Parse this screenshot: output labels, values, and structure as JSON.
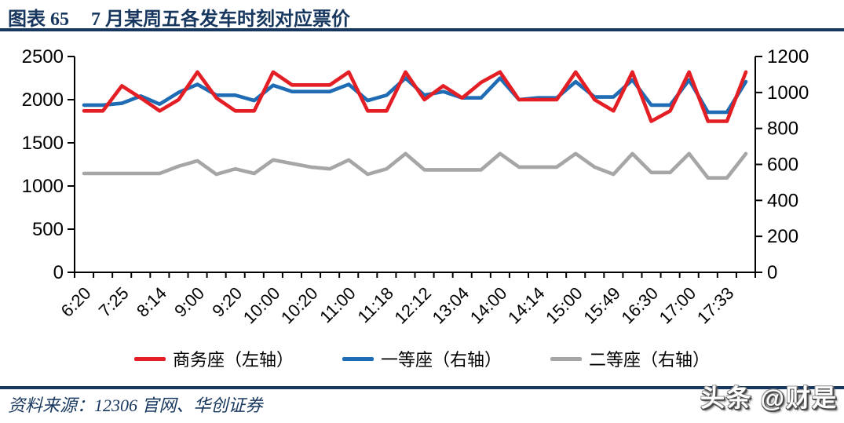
{
  "header": {
    "figure_label": "图表 65",
    "title": "7 月某周五各发车时刻对应票价"
  },
  "footer": {
    "source": "资料来源：12306 官网、华创证券"
  },
  "watermark": {
    "text": "头条 @财是"
  },
  "colors": {
    "navy": "#17375e",
    "axis": "#000000",
    "watermark_text": "#ffffff"
  },
  "chart_data": {
    "type": "line",
    "title": "7 月某周五各发车时刻对应票价",
    "xlabel": "",
    "ylabel_left": "",
    "ylabel_right": "",
    "grid": false,
    "legend_position": "bottom",
    "left_axis": {
      "range": [
        0,
        2500
      ],
      "ticks": [
        0,
        500,
        1000,
        1500,
        2000,
        2500
      ]
    },
    "right_axis": {
      "range": [
        0,
        1200
      ],
      "ticks": [
        0,
        200,
        400,
        600,
        800,
        1000,
        1200
      ]
    },
    "categories": [
      "6:20",
      "",
      "7:25",
      "",
      "8:14",
      "",
      "9:00",
      "",
      "9:20",
      "",
      "10:00",
      "",
      "10:20",
      "",
      "11:00",
      "",
      "11:18",
      "",
      "12:12",
      "",
      "13:04",
      "",
      "14:00",
      "",
      "14:14",
      "",
      "15:00",
      "",
      "15:49",
      "",
      "16:30",
      "",
      "17:00",
      "",
      "17:33",
      ""
    ],
    "series": [
      {
        "name": "商务座（左轴）",
        "axis": "left",
        "color": "#e31e24",
        "values": [
          1870,
          1870,
          2160,
          2020,
          1870,
          2000,
          2320,
          2020,
          1870,
          1870,
          2320,
          2170,
          2170,
          2170,
          2320,
          1870,
          1870,
          2320,
          2000,
          2160,
          2020,
          2200,
          2320,
          2000,
          2000,
          2000,
          2320,
          2000,
          1870,
          2320,
          1750,
          1870,
          2320,
          1750,
          1750,
          2320
        ]
      },
      {
        "name": "一等座（右轴）",
        "axis": "right",
        "color": "#1f6cb5",
        "values": [
          930,
          930,
          940,
          980,
          935,
          1000,
          1045,
          985,
          985,
          955,
          1040,
          1005,
          1005,
          1005,
          1045,
          955,
          985,
          1080,
          985,
          1005,
          970,
          970,
          1080,
          960,
          970,
          970,
          1060,
          975,
          975,
          1070,
          930,
          930,
          1070,
          890,
          890,
          1060
        ]
      },
      {
        "name": "二等座（右轴）",
        "axis": "right",
        "color": "#a6a6a6",
        "values": [
          550,
          550,
          550,
          550,
          550,
          590,
          620,
          545,
          575,
          550,
          625,
          605,
          585,
          575,
          625,
          545,
          575,
          660,
          570,
          570,
          570,
          570,
          660,
          585,
          585,
          585,
          660,
          585,
          545,
          660,
          555,
          555,
          660,
          525,
          525,
          660
        ]
      }
    ]
  }
}
